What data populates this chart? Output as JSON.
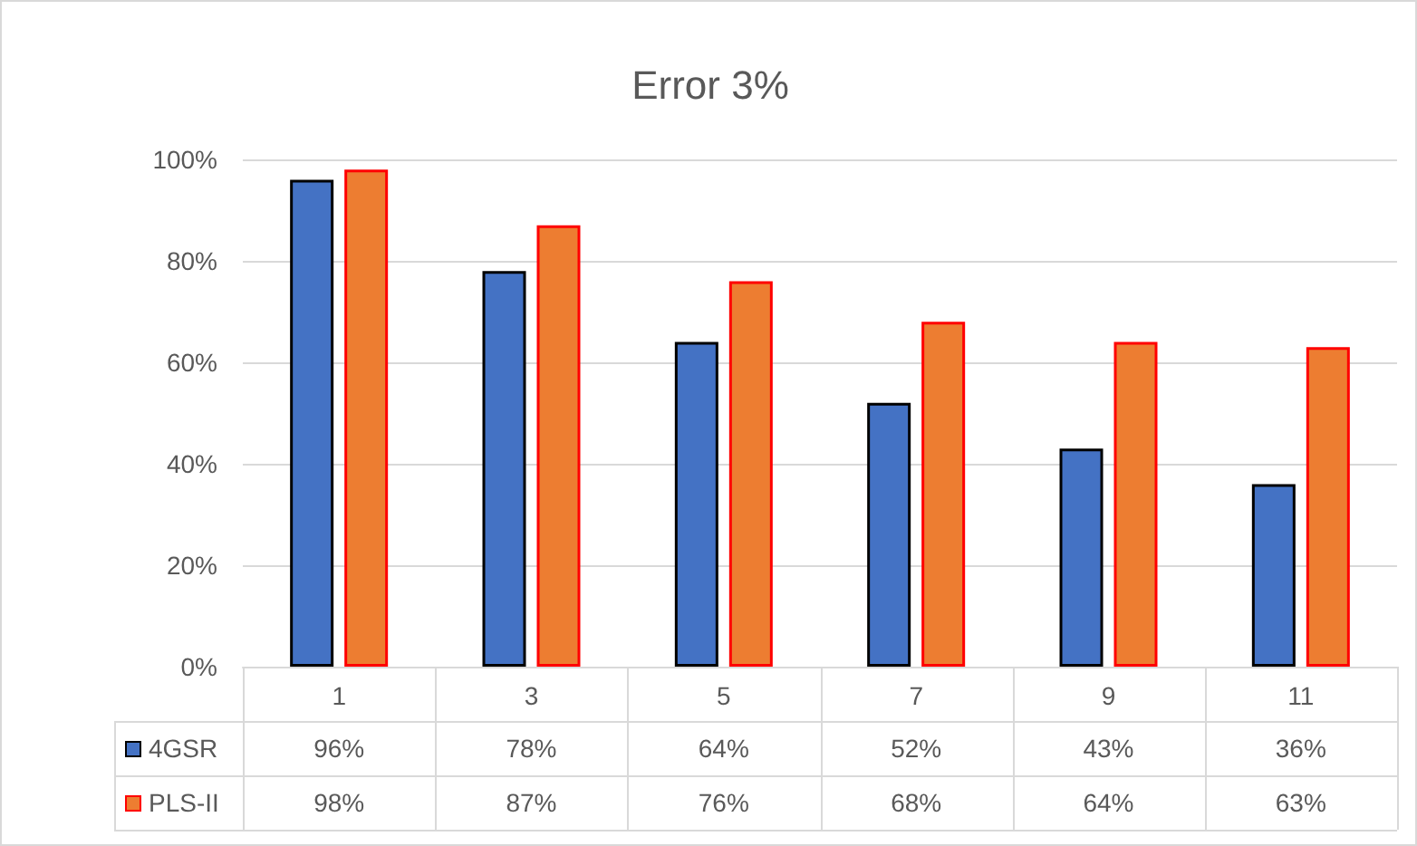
{
  "chart_data": {
    "type": "bar",
    "title": "Error 3%",
    "categories": [
      "1",
      "3",
      "5",
      "7",
      "9",
      "11"
    ],
    "series": [
      {
        "name": "4GSR",
        "color": "#4472c4",
        "values": [
          96,
          78,
          64,
          52,
          43,
          36
        ],
        "value_labels": [
          "96%",
          "78%",
          "64%",
          "52%",
          "43%",
          "36%"
        ]
      },
      {
        "name": "PLS-II",
        "color": "#ed7d31",
        "values": [
          98,
          87,
          76,
          68,
          64,
          63
        ],
        "value_labels": [
          "98%",
          "87%",
          "76%",
          "68%",
          "64%",
          "63%"
        ]
      }
    ],
    "ylim": [
      0,
      100
    ],
    "yticks": [
      {
        "value": 0,
        "label": "0%"
      },
      {
        "value": 20,
        "label": "20%"
      },
      {
        "value": 40,
        "label": "40%"
      },
      {
        "value": 60,
        "label": "60%"
      },
      {
        "value": 80,
        "label": "80%"
      },
      {
        "value": 100,
        "label": "100%"
      }
    ],
    "grid": "y",
    "legend": "bottom"
  }
}
